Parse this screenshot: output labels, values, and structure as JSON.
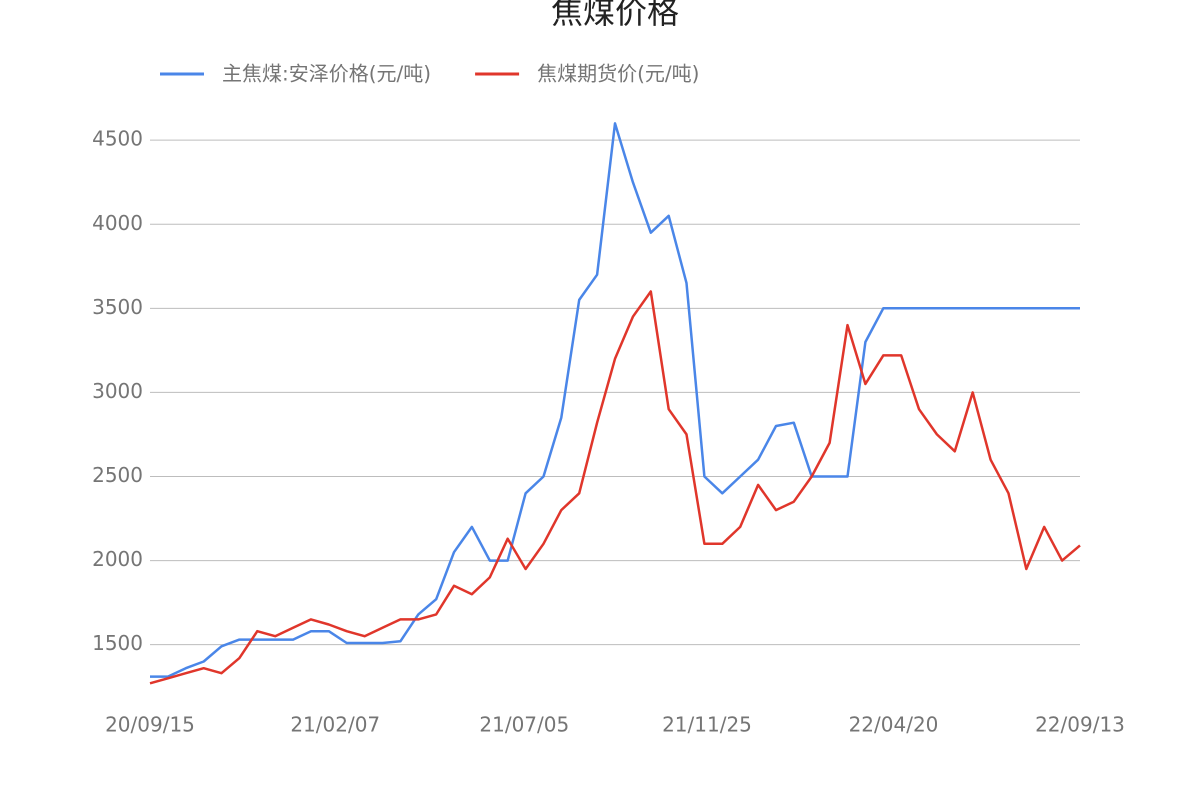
{
  "chart_data": {
    "type": "line",
    "title": "焦煤价格",
    "x": [
      "20/09/15",
      "20/09/29",
      "20/10/13",
      "20/10/27",
      "20/11/10",
      "20/11/24",
      "20/12/08",
      "20/12/22",
      "21/01/05",
      "21/01/19",
      "21/02/02",
      "21/02/16",
      "21/03/02",
      "21/03/16",
      "21/03/30",
      "21/04/13",
      "21/04/27",
      "21/05/11",
      "21/05/25",
      "21/06/08",
      "21/06/22",
      "21/07/06",
      "21/07/20",
      "21/08/03",
      "21/08/17",
      "21/08/31",
      "21/09/14",
      "21/09/28",
      "21/10/12",
      "21/10/26",
      "21/11/09",
      "21/11/23",
      "21/12/07",
      "21/12/21",
      "22/01/04",
      "22/01/18",
      "22/02/01",
      "22/02/15",
      "22/03/01",
      "22/03/15",
      "22/03/29",
      "22/04/12",
      "22/04/26",
      "22/05/10",
      "22/05/24",
      "22/06/07",
      "22/06/21",
      "22/07/05",
      "22/07/19",
      "22/08/02",
      "22/08/16",
      "22/08/30",
      "22/09/13"
    ],
    "series": [
      {
        "name": "主焦煤:安泽价格(元/吨)",
        "color": "#4a86e8",
        "values": [
          1310,
          1310,
          1360,
          1400,
          1490,
          1530,
          1530,
          1530,
          1530,
          1580,
          1580,
          1510,
          1510,
          1510,
          1520,
          1680,
          1770,
          2050,
          2200,
          2000,
          2000,
          2400,
          2500,
          2850,
          3550,
          3700,
          4600,
          4250,
          3950,
          4050,
          3650,
          2500,
          2400,
          2500,
          2600,
          2800,
          2820,
          2500,
          2500,
          2500,
          3300,
          3500,
          3500,
          3500,
          3500,
          3500,
          3500,
          3500,
          3500,
          3500,
          3500,
          3500,
          3500
        ]
      },
      {
        "name": "焦煤期货价(元/吨)",
        "color": "#e0362b",
        "values": [
          1270,
          1300,
          1330,
          1360,
          1330,
          1420,
          1580,
          1550,
          1600,
          1650,
          1620,
          1580,
          1550,
          1600,
          1650,
          1650,
          1680,
          1850,
          1800,
          1900,
          2130,
          1950,
          2100,
          2300,
          2400,
          2820,
          3200,
          3450,
          3600,
          2900,
          2750,
          2100,
          2100,
          2200,
          2450,
          2300,
          2350,
          2500,
          2700,
          3400,
          3050,
          3220,
          3220,
          2900,
          2750,
          2650,
          3000,
          2600,
          2400,
          1950,
          2200,
          2000,
          2090
        ]
      }
    ],
    "xlim": [
      "20/09/15",
      "22/09/13"
    ],
    "xticks": [
      "20/09/15",
      "21/02/07",
      "21/07/05",
      "21/11/25",
      "22/04/20",
      "22/09/13"
    ],
    "ylim": [
      1260,
      4620
    ],
    "yticks": [
      1500,
      2000,
      2500,
      3000,
      3500,
      4000,
      4500
    ],
    "grid": true
  }
}
